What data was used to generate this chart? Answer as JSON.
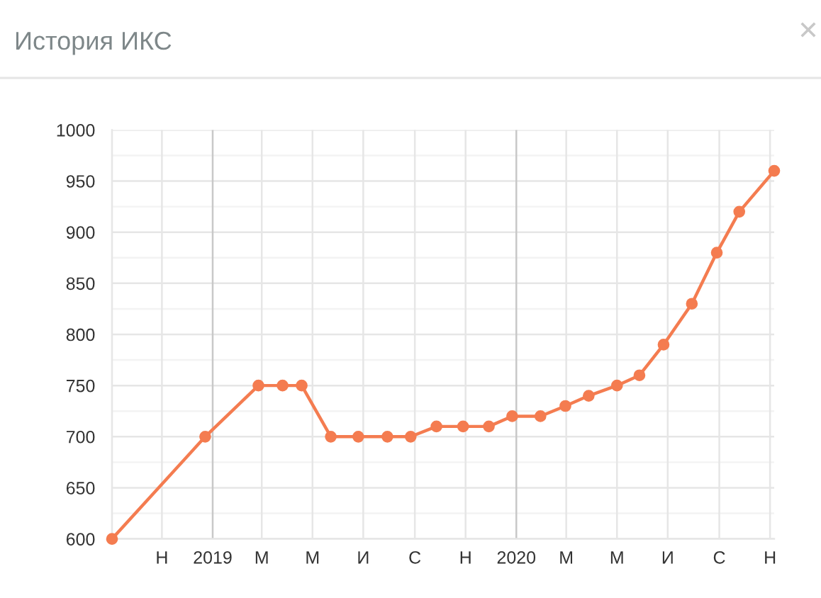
{
  "chart_data": {
    "type": "line",
    "title": "История ИКС",
    "x": [
      "2018-09-02",
      "2018-12-23",
      "2019-02-25",
      "2019-03-26",
      "2019-04-18",
      "2019-05-23",
      "2019-06-25",
      "2019-07-30",
      "2019-08-27",
      "2019-09-27",
      "2019-10-29",
      "2019-11-29",
      "2019-12-27",
      "2020-01-30",
      "2020-02-29",
      "2020-03-28",
      "2020-05-01",
      "2020-05-28",
      "2020-06-26",
      "2020-07-30",
      "2020-08-29",
      "2020-09-25",
      "2020-11-06"
    ],
    "series": [
      {
        "color": "#f47c50",
        "values": [
          600,
          700,
          750,
          750,
          750,
          700,
          700,
          700,
          700,
          710,
          710,
          710,
          720,
          720,
          730,
          740,
          750,
          760,
          790,
          830,
          880,
          920,
          960
        ]
      }
    ],
    "xlim": [
      "2018-09-02",
      "2020-11-06"
    ],
    "xticks": [
      {
        "value": "2018-11-01",
        "label": "Н"
      },
      {
        "value": "2019-01-01",
        "label": "2019"
      },
      {
        "value": "2019-03-01",
        "label": "М"
      },
      {
        "value": "2019-05-01",
        "label": "М"
      },
      {
        "value": "2019-07-01",
        "label": "И"
      },
      {
        "value": "2019-09-01",
        "label": "С"
      },
      {
        "value": "2019-11-01",
        "label": "Н"
      },
      {
        "value": "2020-01-01",
        "label": "2020"
      },
      {
        "value": "2020-03-01",
        "label": "М"
      },
      {
        "value": "2020-05-01",
        "label": "М"
      },
      {
        "value": "2020-07-01",
        "label": "И"
      },
      {
        "value": "2020-09-01",
        "label": "С"
      },
      {
        "value": "2020-11-01",
        "label": "Н"
      }
    ],
    "ylim": [
      600,
      1000
    ],
    "yticks": [
      600,
      {
        "value": 625,
        "label": null
      },
      650,
      {
        "value": 675,
        "label": null
      },
      700,
      {
        "value": 725,
        "label": null
      },
      750,
      {
        "value": 775,
        "label": null
      },
      800,
      {
        "value": 825,
        "label": null
      },
      850,
      {
        "value": 875,
        "label": null
      },
      900,
      {
        "value": 925,
        "label": null
      },
      950,
      {
        "value": 975,
        "label": null
      },
      1000
    ],
    "grid": true,
    "marker": "circle",
    "line_style": "solid"
  }
}
